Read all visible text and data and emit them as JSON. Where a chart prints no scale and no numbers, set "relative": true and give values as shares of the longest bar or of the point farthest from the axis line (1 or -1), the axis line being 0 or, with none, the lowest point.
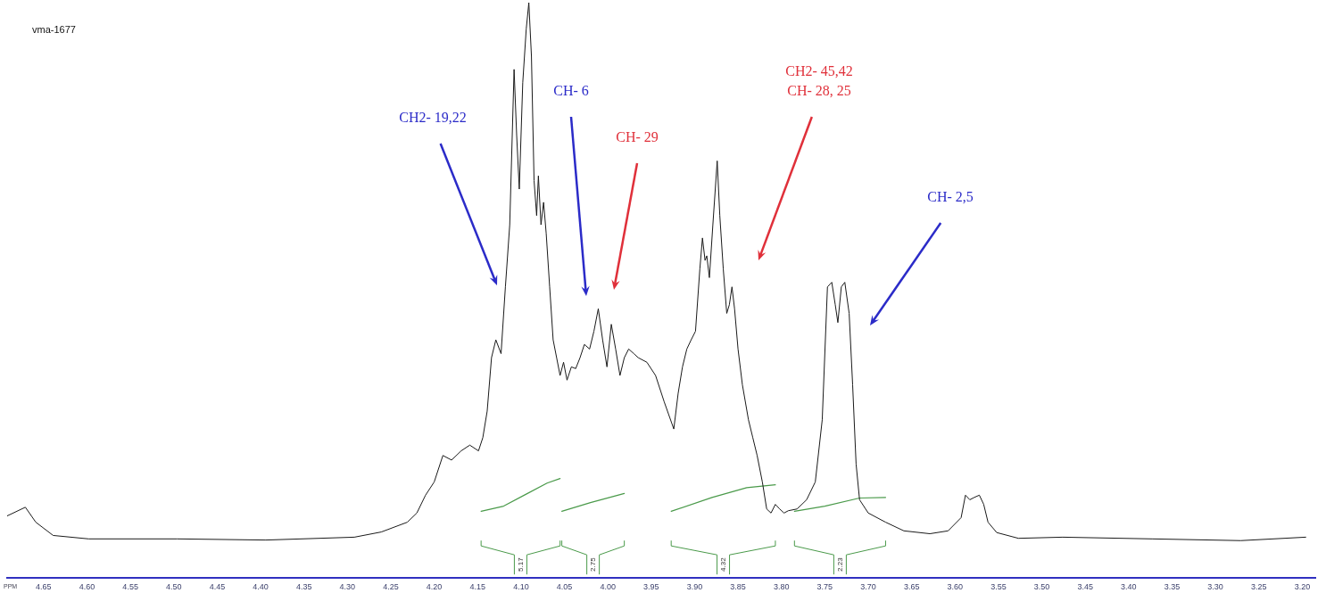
{
  "chart_data": {
    "type": "line",
    "title": "vma-1677",
    "xlabel": "PPM",
    "relative": true,
    "grid": false,
    "legend": false,
    "marker": "none",
    "line_style": "solid",
    "xlim": [
      4.692,
      3.185
    ],
    "xticks": [
      4.65,
      {
        "value": 4.6,
        "label": "4.60"
      },
      4.55,
      {
        "value": 4.5,
        "label": "4.50"
      },
      4.45,
      {
        "value": 4.4,
        "label": "4.40"
      },
      4.35,
      {
        "value": 4.3,
        "label": "4.30"
      },
      4.25,
      {
        "value": 4.2,
        "label": "4.20"
      },
      4.15,
      {
        "value": 4.1,
        "label": "4.10"
      },
      4.05,
      {
        "value": 4.0,
        "label": "4.00"
      },
      3.95,
      {
        "value": 3.9,
        "label": "3.90"
      },
      3.85,
      {
        "value": 3.8,
        "label": "3.80"
      },
      3.75,
      {
        "value": 3.7,
        "label": "3.70"
      },
      3.65,
      {
        "value": 3.6,
        "label": "3.60"
      },
      3.55,
      {
        "value": 3.5,
        "label": "3.50"
      },
      3.45,
      {
        "value": 3.4,
        "label": "3.40"
      },
      3.35,
      {
        "value": 3.3,
        "label": "3.30"
      },
      3.25,
      {
        "value": 3.2,
        "label": "3.20"
      }
    ],
    "series": [
      {
        "color": "#1a1a1a",
        "x": [
          4.692,
          4.671,
          4.659,
          4.639,
          4.598,
          4.496,
          4.394,
          4.292,
          4.261,
          4.231,
          4.22,
          4.21,
          4.2,
          4.19,
          4.18,
          4.169,
          4.159,
          4.149,
          4.144,
          4.139,
          4.134,
          4.129,
          4.123,
          4.118,
          4.113,
          4.108,
          4.105,
          4.102,
          4.098,
          4.094,
          4.091,
          4.088,
          4.085,
          4.082,
          4.08,
          4.077,
          4.074,
          4.071,
          4.067,
          4.063,
          4.059,
          4.055,
          4.051,
          4.047,
          4.042,
          4.037,
          4.032,
          4.027,
          4.021,
          4.016,
          4.011,
          4.006,
          4.001,
          3.996,
          3.991,
          3.986,
          3.981,
          3.976,
          3.97,
          3.965,
          3.955,
          3.945,
          3.935,
          3.924,
          3.919,
          3.914,
          3.909,
          3.904,
          3.899,
          3.894,
          3.891,
          3.888,
          3.886,
          3.883,
          3.879,
          3.874,
          3.871,
          3.867,
          3.863,
          3.86,
          3.857,
          3.854,
          3.85,
          3.845,
          3.838,
          3.833,
          3.828,
          3.822,
          3.817,
          3.812,
          3.807,
          3.802,
          3.797,
          3.792,
          3.782,
          3.771,
          3.761,
          3.753,
          3.747,
          3.742,
          3.738,
          3.735,
          3.731,
          3.727,
          3.722,
          3.718,
          3.714,
          3.71,
          3.7,
          3.68,
          3.659,
          3.629,
          3.608,
          3.593,
          3.588,
          3.583,
          3.578,
          3.572,
          3.567,
          3.562,
          3.552,
          3.527,
          3.476,
          3.373,
          3.271,
          3.196
        ],
        "values": [
          0.108,
          0.123,
          0.097,
          0.074,
          0.068,
          0.068,
          0.066,
          0.071,
          0.08,
          0.097,
          0.113,
          0.144,
          0.167,
          0.213,
          0.205,
          0.221,
          0.231,
          0.221,
          0.244,
          0.29,
          0.383,
          0.414,
          0.39,
          0.506,
          0.614,
          0.884,
          0.769,
          0.676,
          0.861,
          0.954,
          1,
          0.907,
          0.691,
          0.63,
          0.699,
          0.614,
          0.653,
          0.599,
          0.506,
          0.414,
          0.383,
          0.352,
          0.375,
          0.344,
          0.367,
          0.364,
          0.383,
          0.406,
          0.398,
          0.429,
          0.468,
          0.414,
          0.367,
          0.441,
          0.398,
          0.352,
          0.383,
          0.398,
          0.39,
          0.383,
          0.375,
          0.352,
          0.306,
          0.259,
          0.321,
          0.367,
          0.398,
          0.414,
          0.429,
          0.537,
          0.591,
          0.552,
          0.56,
          0.522,
          0.614,
          0.725,
          0.63,
          0.537,
          0.46,
          0.475,
          0.506,
          0.468,
          0.398,
          0.336,
          0.275,
          0.244,
          0.213,
          0.167,
          0.12,
          0.113,
          0.128,
          0.12,
          0.113,
          0.117,
          0.12,
          0.136,
          0.167,
          0.275,
          0.506,
          0.514,
          0.475,
          0.444,
          0.506,
          0.514,
          0.46,
          0.336,
          0.198,
          0.136,
          0.113,
          0.097,
          0.082,
          0.077,
          0.082,
          0.105,
          0.144,
          0.136,
          0.14,
          0.144,
          0.128,
          0.097,
          0.079,
          0.069,
          0.071,
          0.068,
          0.065,
          0.071
        ]
      },
      {
        "color": "#4a9a4a",
        "x": [
          4.146,
          4.12,
          4.095,
          4.07,
          4.055
        ],
        "values": [
          0.116,
          0.125,
          0.145,
          0.165,
          0.173
        ]
      },
      {
        "color": "#4a9a4a",
        "x": [
          4.053,
          4.02,
          3.981
        ],
        "values": [
          0.116,
          0.131,
          0.147
        ]
      },
      {
        "color": "#4a9a4a",
        "x": [
          3.927,
          3.88,
          3.84,
          3.807
        ],
        "values": [
          0.116,
          0.14,
          0.157,
          0.162
        ]
      },
      {
        "color": "#4a9a4a",
        "x": [
          3.785,
          3.75,
          3.71,
          3.68
        ],
        "values": [
          0.116,
          0.125,
          0.139,
          0.14
        ]
      }
    ],
    "annotations": [
      "CH2- 19,22",
      "CH- 6",
      "CH- 29",
      "CH2- 45,42\nCH- 28, 25",
      "CH- 2,5",
      "5.17",
      "2.75",
      "4.32",
      "2.23"
    ]
  }
}
